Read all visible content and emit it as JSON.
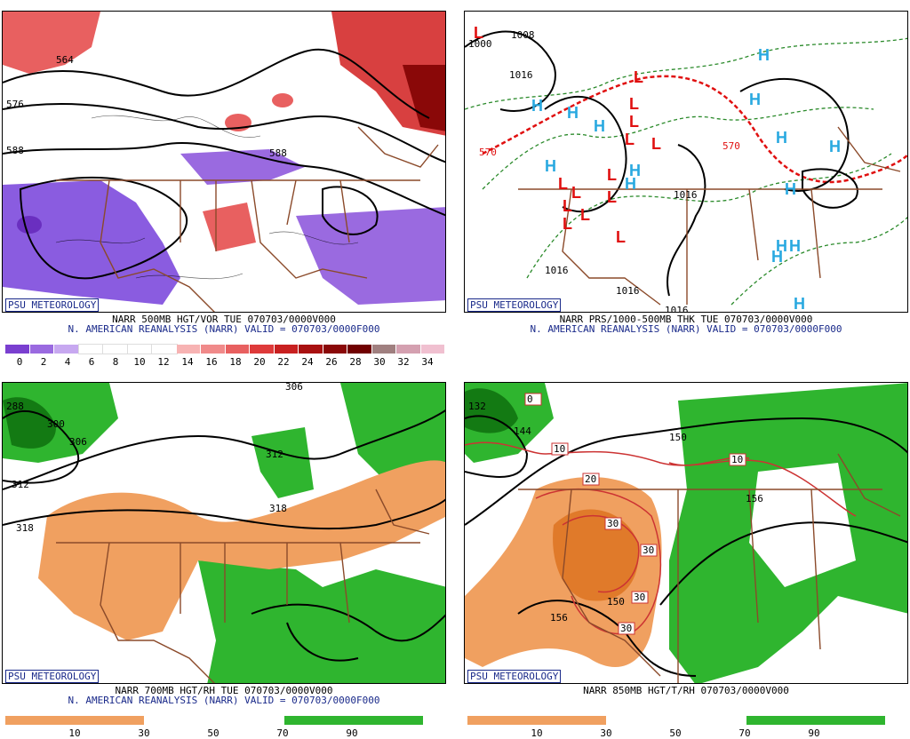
{
  "panels": {
    "p1": {
      "badge": "PSU METEOROLOGY",
      "line1": "NARR 500MB HGT/VOR TUE 070703/0000V000",
      "line2": "N. AMERICAN REANALYSIS (NARR) VALID = 070703/0000F000",
      "ticks": [
        "0",
        "2",
        "4",
        "6",
        "8",
        "10",
        "12",
        "14",
        "16",
        "18",
        "20",
        "22",
        "24",
        "26",
        "28",
        "30",
        "32",
        "34"
      ],
      "contour_labels": [
        "564",
        "576",
        "588",
        "588"
      ],
      "colors": [
        "#7a3fd0",
        "#9a6ae0",
        "#c7a8f0",
        "#ffffff",
        "#ffffff",
        "#ffffff",
        "#ffffff",
        "#f7b3b3",
        "#f08a8a",
        "#e86060",
        "#de3a3a",
        "#c82020",
        "#a81010",
        "#8a0808",
        "#700000",
        "#a08080",
        "#d4a0b0",
        "#f0c0d0"
      ]
    },
    "p2": {
      "badge": "PSU METEOROLOGY",
      "line1": "NARR PRS/1000-500MB THK TUE 070703/0000V000",
      "line2": "N. AMERICAN REANALYSIS (NARR) VALID = 070703/0000F000",
      "contour_labels": [
        "1000",
        "1008",
        "1016",
        "1016",
        "1016",
        "1016",
        "1016",
        "570",
        "570"
      ],
      "high_label": "H",
      "low_label": "L"
    },
    "p3": {
      "badge": "PSU METEOROLOGY",
      "line1": "NARR 700MB HGT/RH TUE 070703/0000V000",
      "line2": "N. AMERICAN REANALYSIS (NARR) VALID = 070703/0000F000",
      "ticks": [
        "10",
        "30",
        "50",
        "70",
        "90"
      ],
      "contour_labels": [
        "288",
        "300",
        "306",
        "306",
        "312",
        "312",
        "318",
        "318"
      ]
    },
    "p4": {
      "badge": "PSU METEOROLOGY",
      "line1": "NARR 850MB HGT/T/RH 070703/0000V000",
      "ticks": [
        "10",
        "30",
        "50",
        "70",
        "90"
      ],
      "contour_labels": [
        "132",
        "144",
        "150",
        "156",
        "156",
        "150"
      ],
      "temp_labels": [
        "0",
        "10",
        "10",
        "20",
        "30",
        "30",
        "30",
        "30"
      ]
    }
  },
  "colors": {
    "dry": "#f0a060",
    "moist": "#2fb52f",
    "border": "#8b4a2a",
    "navy": "#1a2a8a",
    "high": "#29a9e0",
    "low": "#e01010"
  }
}
